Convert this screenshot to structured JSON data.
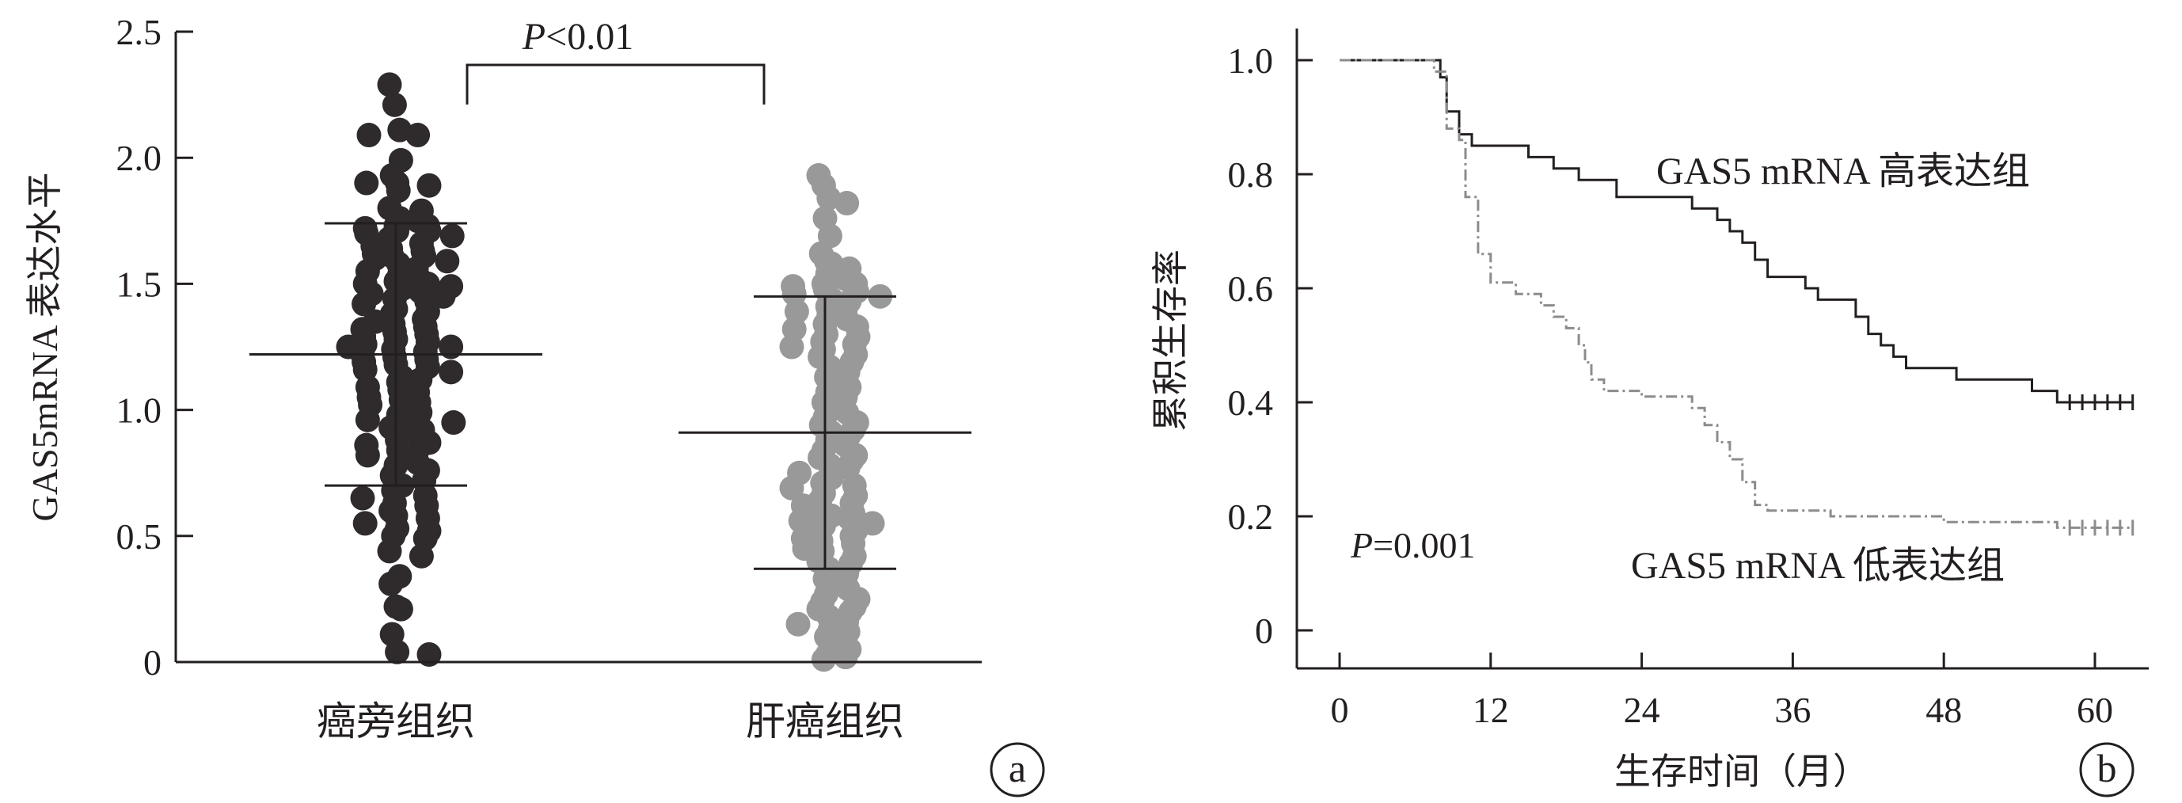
{
  "colors": {
    "ink": "#231f20",
    "dot_adjacent": "#2f2a2b",
    "dot_tumor": "#999999",
    "low_line": "#8c8c8c"
  },
  "chart_data": [
    {
      "type": "scatter",
      "panel_label": "a",
      "ylabel": "GAS5mRNA 表达水平",
      "ylim": [
        0,
        2.5
      ],
      "yticks": [
        "0",
        "0.5",
        "1.0",
        "1.5",
        "2.0",
        "2.5"
      ],
      "categories": [
        "癌旁组织",
        "肝癌组织"
      ],
      "annotation": "P<0.01",
      "groups": [
        {
          "category": "癌旁组织",
          "mean": 1.22,
          "sd_low": 0.7,
          "sd_high": 1.74,
          "points": [
            2.29,
            2.21,
            2.11,
            2.09,
            2.09,
            1.99,
            1.93,
            1.9,
            1.89,
            1.9,
            1.87,
            1.8,
            1.79,
            1.76,
            1.75,
            1.73,
            1.73,
            1.72,
            1.71,
            1.71,
            1.7,
            1.69,
            1.68,
            1.66,
            1.65,
            1.64,
            1.63,
            1.62,
            1.61,
            1.61,
            1.6,
            1.59,
            1.58,
            1.56,
            1.55,
            1.54,
            1.53,
            1.51,
            1.5,
            1.5,
            1.49,
            1.48,
            1.47,
            1.46,
            1.45,
            1.44,
            1.43,
            1.42,
            1.4,
            1.39,
            1.38,
            1.36,
            1.35,
            1.34,
            1.33,
            1.32,
            1.31,
            1.3,
            1.29,
            1.28,
            1.27,
            1.26,
            1.25,
            1.25,
            1.24,
            1.23,
            1.22,
            1.21,
            1.2,
            1.19,
            1.18,
            1.17,
            1.16,
            1.15,
            1.13,
            1.12,
            1.11,
            1.1,
            1.09,
            1.08,
            1.07,
            1.05,
            1.04,
            1.03,
            1.02,
            1.0,
            0.99,
            0.98,
            0.97,
            0.96,
            0.95,
            0.93,
            0.92,
            0.91,
            0.9,
            0.88,
            0.87,
            0.86,
            0.84,
            0.83,
            0.82,
            0.8,
            0.79,
            0.78,
            0.76,
            0.74,
            0.72,
            0.7,
            0.68,
            0.66,
            0.65,
            0.63,
            0.62,
            0.6,
            0.58,
            0.57,
            0.55,
            0.53,
            0.52,
            0.5,
            0.49,
            0.44,
            0.42,
            0.34,
            0.31,
            0.22,
            0.21,
            0.11,
            0.04,
            0.03
          ]
        },
        {
          "category": "肝癌组织",
          "mean": 0.91,
          "sd_low": 0.37,
          "sd_high": 1.45,
          "points": [
            1.93,
            1.89,
            1.84,
            1.82,
            1.76,
            1.69,
            1.62,
            1.59,
            1.58,
            1.56,
            1.54,
            1.52,
            1.5,
            1.5,
            1.49,
            1.48,
            1.47,
            1.46,
            1.45,
            1.44,
            1.43,
            1.41,
            1.4,
            1.39,
            1.38,
            1.36,
            1.34,
            1.33,
            1.32,
            1.3,
            1.29,
            1.27,
            1.26,
            1.25,
            1.24,
            1.22,
            1.21,
            1.19,
            1.17,
            1.15,
            1.13,
            1.11,
            1.09,
            1.07,
            1.05,
            1.03,
            1.0,
            0.99,
            0.97,
            0.95,
            0.94,
            0.92,
            0.91,
            0.9,
            0.88,
            0.86,
            0.84,
            0.82,
            0.81,
            0.8,
            0.78,
            0.77,
            0.75,
            0.73,
            0.71,
            0.7,
            0.69,
            0.67,
            0.66,
            0.64,
            0.63,
            0.62,
            0.6,
            0.59,
            0.58,
            0.57,
            0.56,
            0.55,
            0.54,
            0.52,
            0.51,
            0.5,
            0.49,
            0.48,
            0.47,
            0.45,
            0.44,
            0.42,
            0.4,
            0.39,
            0.37,
            0.35,
            0.33,
            0.31,
            0.29,
            0.27,
            0.25,
            0.24,
            0.22,
            0.21,
            0.2,
            0.18,
            0.16,
            0.15,
            0.13,
            0.12,
            0.1,
            0.07,
            0.05,
            0.03,
            0.02,
            0.01
          ]
        }
      ]
    },
    {
      "type": "line",
      "panel_label": "b",
      "xlabel": "生存时间（月）",
      "ylabel": "累积生存率",
      "xlim": [
        0,
        64
      ],
      "ylim": [
        0,
        1.0
      ],
      "xticks": [
        "0",
        "12",
        "24",
        "36",
        "48",
        "60"
      ],
      "yticks": [
        "0",
        "0.2",
        "0.4",
        "0.6",
        "0.8",
        "1.0"
      ],
      "annotation": "P=0.001",
      "series": [
        {
          "name": "GAS5 mRNA 高表达组",
          "style": "solid",
          "points": [
            [
              0,
              1.0
            ],
            [
              8,
              1.0
            ],
            [
              8,
              0.97
            ],
            [
              8.5,
              0.97
            ],
            [
              8.5,
              0.91
            ],
            [
              9.5,
              0.91
            ],
            [
              9.5,
              0.87
            ],
            [
              10.5,
              0.87
            ],
            [
              10.5,
              0.85
            ],
            [
              15,
              0.85
            ],
            [
              15,
              0.83
            ],
            [
              17,
              0.83
            ],
            [
              17,
              0.81
            ],
            [
              19,
              0.81
            ],
            [
              19,
              0.79
            ],
            [
              22,
              0.79
            ],
            [
              22,
              0.76
            ],
            [
              28,
              0.76
            ],
            [
              28,
              0.74
            ],
            [
              30,
              0.74
            ],
            [
              30,
              0.72
            ],
            [
              31,
              0.72
            ],
            [
              31,
              0.7
            ],
            [
              32,
              0.7
            ],
            [
              32,
              0.68
            ],
            [
              33,
              0.68
            ],
            [
              33,
              0.65
            ],
            [
              34,
              0.65
            ],
            [
              34,
              0.62
            ],
            [
              37,
              0.62
            ],
            [
              37,
              0.6
            ],
            [
              38,
              0.6
            ],
            [
              38,
              0.58
            ],
            [
              41,
              0.58
            ],
            [
              41,
              0.55
            ],
            [
              42,
              0.55
            ],
            [
              42,
              0.52
            ],
            [
              43,
              0.52
            ],
            [
              43,
              0.5
            ],
            [
              44,
              0.5
            ],
            [
              44,
              0.48
            ],
            [
              45,
              0.48
            ],
            [
              45,
              0.46
            ],
            [
              49,
              0.46
            ],
            [
              49,
              0.44
            ],
            [
              55,
              0.44
            ],
            [
              55,
              0.42
            ],
            [
              57,
              0.42
            ],
            [
              57,
              0.4
            ],
            [
              63,
              0.4
            ]
          ],
          "censor_x": [
            58,
            59,
            60,
            61,
            62,
            63
          ]
        },
        {
          "name": "GAS5 mRNA 低表达组",
          "style": "dashdot",
          "points": [
            [
              0,
              1.0
            ],
            [
              7.5,
              1.0
            ],
            [
              7.5,
              0.98
            ],
            [
              8.5,
              0.98
            ],
            [
              8.5,
              0.88
            ],
            [
              9.5,
              0.88
            ],
            [
              9.5,
              0.86
            ],
            [
              10,
              0.86
            ],
            [
              10,
              0.76
            ],
            [
              11,
              0.76
            ],
            [
              11,
              0.66
            ],
            [
              12,
              0.66
            ],
            [
              12,
              0.61
            ],
            [
              14,
              0.61
            ],
            [
              14,
              0.59
            ],
            [
              16,
              0.59
            ],
            [
              16,
              0.57
            ],
            [
              17,
              0.57
            ],
            [
              17,
              0.55
            ],
            [
              18,
              0.55
            ],
            [
              18,
              0.53
            ],
            [
              19,
              0.53
            ],
            [
              19,
              0.5
            ],
            [
              19.5,
              0.5
            ],
            [
              19.5,
              0.47
            ],
            [
              20,
              0.47
            ],
            [
              20,
              0.44
            ],
            [
              21,
              0.44
            ],
            [
              21,
              0.42
            ],
            [
              24,
              0.42
            ],
            [
              24,
              0.41
            ],
            [
              28,
              0.41
            ],
            [
              28,
              0.39
            ],
            [
              29,
              0.39
            ],
            [
              29,
              0.36
            ],
            [
              30,
              0.36
            ],
            [
              30,
              0.33
            ],
            [
              31,
              0.33
            ],
            [
              31,
              0.3
            ],
            [
              32,
              0.3
            ],
            [
              32,
              0.26
            ],
            [
              33,
              0.26
            ],
            [
              33,
              0.22
            ],
            [
              34,
              0.22
            ],
            [
              34,
              0.21
            ],
            [
              39,
              0.21
            ],
            [
              39,
              0.2
            ],
            [
              48,
              0.2
            ],
            [
              48,
              0.19
            ],
            [
              57,
              0.19
            ],
            [
              57,
              0.18
            ],
            [
              63,
              0.18
            ]
          ],
          "censor_x": [
            58,
            59,
            60,
            61,
            62,
            63
          ]
        }
      ]
    }
  ]
}
